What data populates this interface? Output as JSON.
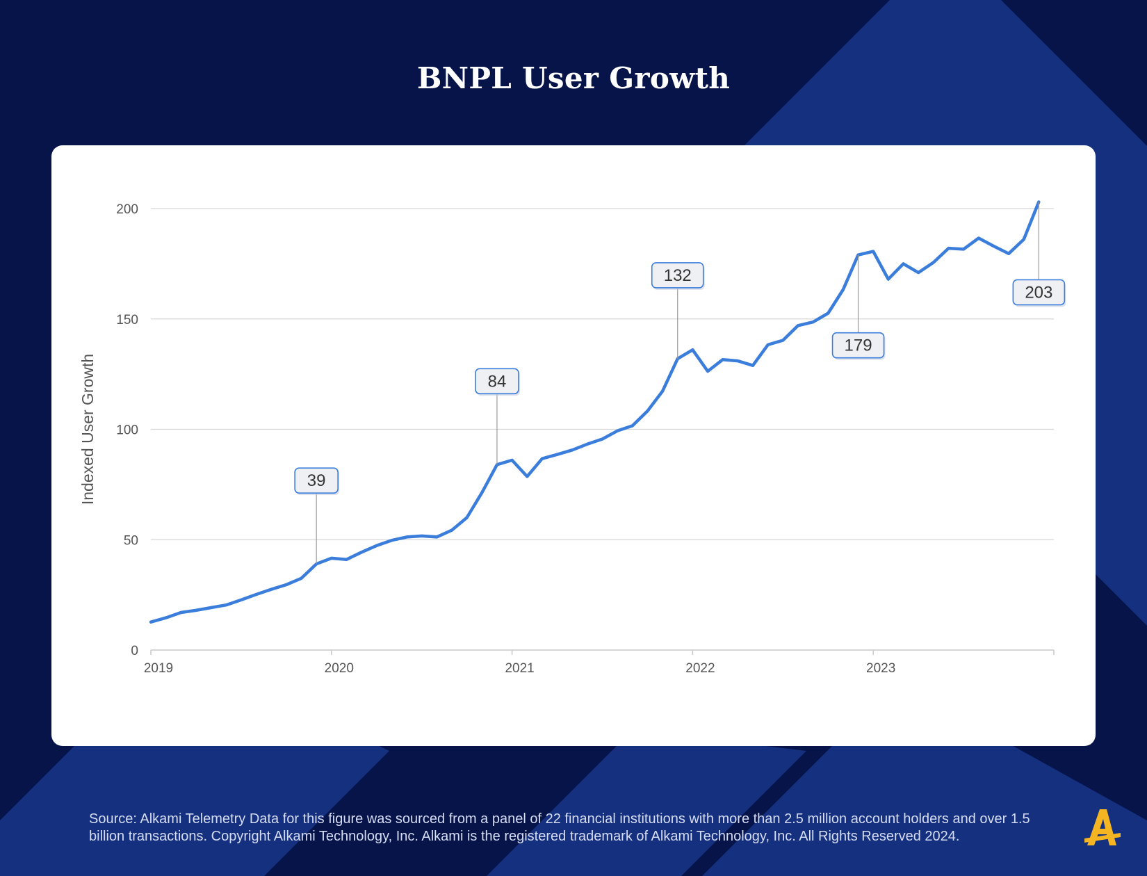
{
  "title": "BNPL User Growth",
  "footer": {
    "source_text": "Source:  Alkami Telemetry Data for this figure was sourced from a panel of 22 financial institutions with more than 2.5 million account holders and over 1.5 billion transactions. Copyright Alkami Technology, Inc. Alkami is the registered trademark of Alkami Technology, Inc. All Rights Reserved 2024."
  },
  "logo": {
    "icon": "alkami-logo-icon",
    "color": "#f5b523"
  },
  "colors": {
    "background": "#07144a",
    "panel": "#14307f",
    "line": "#3a7ddb"
  },
  "chart_data": {
    "type": "line",
    "title": "BNPL User Growth",
    "xlabel": "",
    "ylabel": "Indexed User Growth",
    "ylim": [
      0,
      200
    ],
    "yticks": [
      0,
      50,
      100,
      150,
      200
    ],
    "xlim": [
      "2019-01",
      "2024-01"
    ],
    "xticks": [
      "2019",
      "2020",
      "2021",
      "2022",
      "2023"
    ],
    "grid": true,
    "series": [
      {
        "values": [
          [
            "2019-01",
            12.7
          ],
          [
            "2019-02",
            14.6
          ],
          [
            "2019-03",
            17.0
          ],
          [
            "2019-04",
            18.0
          ],
          [
            "2019-05",
            19.2
          ],
          [
            "2019-06",
            20.4
          ],
          [
            "2019-07",
            22.7
          ],
          [
            "2019-08",
            25.2
          ],
          [
            "2019-09",
            27.5
          ],
          [
            "2019-10",
            29.6
          ],
          [
            "2019-11",
            32.5
          ],
          [
            "2019-12",
            39.0
          ],
          [
            "2020-01",
            41.6
          ],
          [
            "2020-02",
            41.0
          ],
          [
            "2020-03",
            44.3
          ],
          [
            "2020-04",
            47.3
          ],
          [
            "2020-05",
            49.7
          ],
          [
            "2020-06",
            51.2
          ],
          [
            "2020-07",
            51.7
          ],
          [
            "2020-08",
            51.2
          ],
          [
            "2020-09",
            54.3
          ],
          [
            "2020-10",
            60.0
          ],
          [
            "2020-11",
            71.3
          ],
          [
            "2020-12",
            84.0
          ],
          [
            "2021-01",
            86.0
          ],
          [
            "2021-02",
            78.6
          ],
          [
            "2021-03",
            86.7
          ],
          [
            "2021-04",
            88.6
          ],
          [
            "2021-05",
            90.6
          ],
          [
            "2021-06",
            93.3
          ],
          [
            "2021-07",
            95.6
          ],
          [
            "2021-08",
            99.3
          ],
          [
            "2021-09",
            101.6
          ],
          [
            "2021-10",
            108.3
          ],
          [
            "2021-11",
            117.3
          ],
          [
            "2021-12",
            132.0
          ],
          [
            "2022-01",
            136.0
          ],
          [
            "2022-02",
            126.3
          ],
          [
            "2022-03",
            131.6
          ],
          [
            "2022-04",
            131.0
          ],
          [
            "2022-05",
            128.9
          ],
          [
            "2022-06",
            138.3
          ],
          [
            "2022-07",
            140.3
          ],
          [
            "2022-08",
            147.0
          ],
          [
            "2022-09",
            148.6
          ],
          [
            "2022-10",
            152.6
          ],
          [
            "2022-11",
            163.3
          ],
          [
            "2022-12",
            179.0
          ],
          [
            "2023-01",
            180.6
          ],
          [
            "2023-02",
            168.0
          ],
          [
            "2023-03",
            175.0
          ],
          [
            "2023-04",
            171.0
          ],
          [
            "2023-05",
            175.6
          ],
          [
            "2023-06",
            182.0
          ],
          [
            "2023-07",
            181.6
          ],
          [
            "2023-08",
            186.6
          ],
          [
            "2023-09",
            183.0
          ],
          [
            "2023-10",
            179.6
          ],
          [
            "2023-11",
            186.0
          ],
          [
            "2023-12",
            203.0
          ]
        ]
      }
    ],
    "annotations": [
      {
        "x": "2019-12",
        "y": 39,
        "text": "39",
        "position": "above"
      },
      {
        "x": "2020-12",
        "y": 84,
        "text": "84",
        "position": "above"
      },
      {
        "x": "2021-12",
        "y": 132,
        "text": "132",
        "position": "above"
      },
      {
        "x": "2022-12",
        "y": 179,
        "text": "179",
        "position": "below"
      },
      {
        "x": "2023-12",
        "y": 203,
        "text": "203",
        "position": "below"
      }
    ]
  }
}
